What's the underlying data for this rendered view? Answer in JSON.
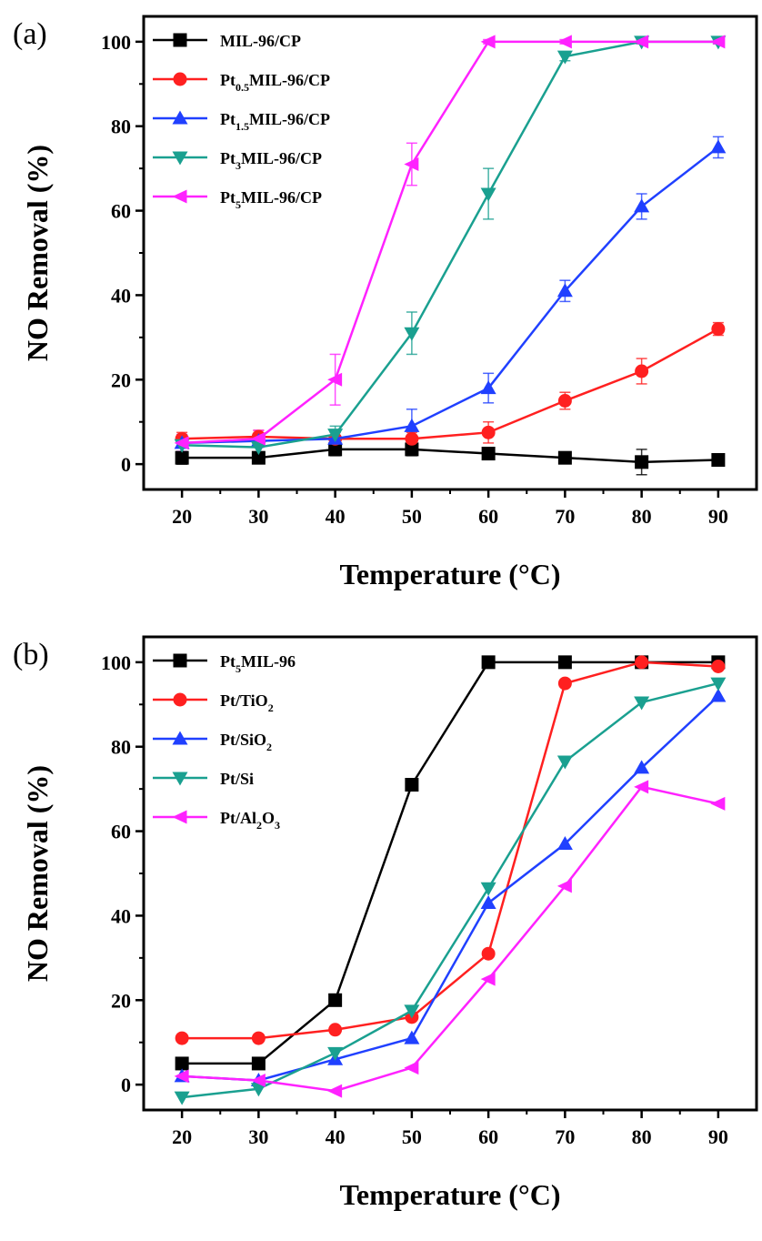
{
  "chart_data": [
    {
      "panel_label": "(a)",
      "type": "line",
      "xlabel": "Temperature (°C)",
      "ylabel": "NO Removal (%)",
      "x": [
        20,
        30,
        40,
        50,
        60,
        70,
        80,
        90
      ],
      "xticks": [
        "20",
        "30",
        "40",
        "50",
        "60",
        "70",
        "80",
        "90"
      ],
      "yticks": [
        "0",
        "20",
        "40",
        "60",
        "80",
        "100"
      ],
      "xlim": [
        15,
        95
      ],
      "ylim": [
        -6,
        106
      ],
      "legend_position": "top-left",
      "series": [
        {
          "name": "MIL-96/CP",
          "legend": {
            "base": "MIL-96/CP",
            "sub": "",
            "rest": ""
          },
          "color": "#000000",
          "marker": "square",
          "values": [
            1.5,
            1.5,
            3.5,
            3.5,
            2.5,
            1.5,
            0.5,
            1.0
          ]
        },
        {
          "name": "Pt0.5MIL-96/CP",
          "legend": {
            "base": "Pt",
            "sub": "0.5",
            "rest": "MIL-96/CP"
          },
          "color": "#ff2020",
          "marker": "circle",
          "values": [
            6,
            6.5,
            6,
            6,
            7.5,
            15,
            22,
            32
          ]
        },
        {
          "name": "Pt1.5MIL-96/CP",
          "legend": {
            "base": "Pt",
            "sub": "1.5",
            "rest": "MIL-96/CP"
          },
          "color": "#2040ff",
          "marker": "triangle-up",
          "values": [
            5,
            5.5,
            6,
            9,
            18,
            41,
            61,
            75
          ]
        },
        {
          "name": "Pt3MIL-96/CP",
          "legend": {
            "base": "Pt",
            "sub": "3",
            "rest": "MIL-96/CP"
          },
          "color": "#1aa090",
          "marker": "triangle-down",
          "values": [
            4.5,
            4,
            7,
            31,
            64,
            96.5,
            100,
            100
          ]
        },
        {
          "name": "Pt5MIL-96/CP",
          "legend": {
            "base": "Pt",
            "sub": "5",
            "rest": "MIL-96/CP"
          },
          "color": "#ff22ff",
          "marker": "diamond-left",
          "values": [
            5,
            6,
            20,
            71,
            100,
            100,
            100,
            100
          ]
        }
      ],
      "error_bars": [
        {
          "series": "MIL-96/CP",
          "values": [
            1.5,
            1,
            1.5,
            1.5,
            1,
            1,
            3,
            1
          ]
        },
        {
          "series": "Pt0.5MIL-96/CP",
          "values": [
            1.5,
            1.5,
            1.5,
            1.5,
            2.5,
            2,
            3,
            1.5
          ]
        },
        {
          "series": "Pt1.5MIL-96/CP",
          "values": [
            2,
            1.5,
            1.5,
            4,
            3.5,
            2.5,
            3,
            2.5
          ]
        },
        {
          "series": "Pt3MIL-96/CP",
          "values": [
            2,
            2,
            2,
            5,
            6,
            1,
            0.5,
            0.5
          ]
        },
        {
          "series": "Pt5MIL-96/CP",
          "values": [
            2,
            2,
            6,
            5,
            0.5,
            0.5,
            0.5,
            0.5
          ]
        }
      ]
    },
    {
      "panel_label": "(b)",
      "type": "line",
      "xlabel": "Temperature (°C)",
      "ylabel": "NO Removal (%)",
      "x": [
        20,
        30,
        40,
        50,
        60,
        70,
        80,
        90
      ],
      "xticks": [
        "20",
        "30",
        "40",
        "50",
        "60",
        "70",
        "80",
        "90"
      ],
      "yticks": [
        "0",
        "20",
        "40",
        "60",
        "80",
        "100"
      ],
      "xlim": [
        15,
        95
      ],
      "ylim": [
        -6,
        106
      ],
      "legend_position": "top-left",
      "series": [
        {
          "name": "Pt5MIL-96",
          "legend": {
            "base": "Pt",
            "sub": "5",
            "rest": "MIL-96"
          },
          "color": "#000000",
          "marker": "square",
          "values": [
            5,
            5,
            20,
            71,
            100,
            100,
            100,
            100
          ]
        },
        {
          "name": "Pt/TiO2",
          "legend": {
            "base": "Pt/TiO",
            "sub": "2",
            "rest": ""
          },
          "color": "#ff2020",
          "marker": "circle",
          "values": [
            11,
            11,
            13,
            16,
            31,
            95,
            100,
            99
          ]
        },
        {
          "name": "Pt/SiO2",
          "legend": {
            "base": "Pt/SiO",
            "sub": "2",
            "rest": ""
          },
          "color": "#2040ff",
          "marker": "triangle-up",
          "values": [
            2,
            1,
            6,
            11,
            43,
            57,
            75,
            92
          ]
        },
        {
          "name": "Pt/Si",
          "legend": {
            "base": "Pt/Si",
            "sub": "",
            "rest": ""
          },
          "color": "#1aa090",
          "marker": "triangle-down",
          "values": [
            -3,
            -1,
            7.5,
            17.5,
            46.5,
            76.5,
            90.5,
            95
          ]
        },
        {
          "name": "Pt/Al2O3",
          "legend": {
            "base": "Pt/Al",
            "sub": "2",
            "rest": "O",
            "sub2": "3"
          },
          "color": "#ff22ff",
          "marker": "diamond-left",
          "values": [
            2,
            1,
            -1.5,
            4,
            25,
            47,
            70.5,
            66.5
          ]
        }
      ]
    }
  ]
}
